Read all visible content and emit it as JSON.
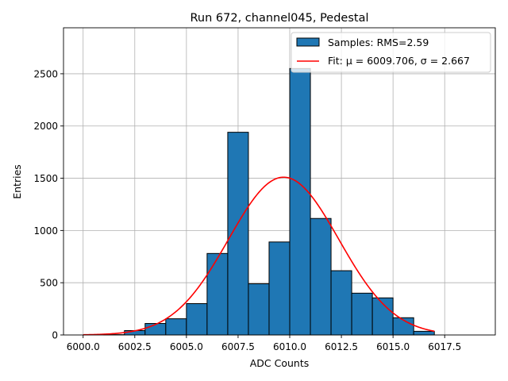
{
  "chart_data": {
    "type": "bar",
    "title": "Run 672, channel045, Pedestal",
    "xlabel": "ADC Counts",
    "ylabel": "Entries",
    "xlim": [
      5999.05,
      6019.95
    ],
    "ylim": [
      0,
      2940
    ],
    "xticks": [
      6000.0,
      6002.5,
      6005.0,
      6007.5,
      6010.0,
      6012.5,
      6015.0,
      6017.5
    ],
    "xtick_labels": [
      "6000.0",
      "6002.5",
      "6005.0",
      "6007.5",
      "6010.0",
      "6012.5",
      "6015.0",
      "6017.5"
    ],
    "yticks": [
      0,
      500,
      1000,
      1500,
      2000,
      2500
    ],
    "ytick_labels": [
      "0",
      "500",
      "1000",
      "1500",
      "2000",
      "2500"
    ],
    "grid": true,
    "histogram": {
      "name": "Samples: RMS=2.59",
      "color": "#1f77b4",
      "edgecolor": "#000000",
      "bin_edges": [
        6000,
        6001,
        6002,
        6003,
        6004,
        6005,
        6006,
        6007,
        6008,
        6009,
        6010,
        6011,
        6012,
        6013,
        6014,
        6015,
        6016,
        6017,
        6018,
        6019
      ],
      "values": [
        0,
        3,
        42,
        110,
        155,
        300,
        780,
        1940,
        490,
        890,
        2550,
        1115,
        615,
        400,
        355,
        165,
        35,
        0,
        0
      ]
    },
    "fit": {
      "name": "Fit: μ = 6009.706, σ = 2.667",
      "mu_label": "μ",
      "sigma_label": "σ",
      "color": "#ff0000",
      "mu": 6009.706,
      "sigma": 2.667,
      "amplitude": 1510,
      "x_range": [
        6000,
        6017
      ]
    },
    "legend": {
      "position": "top-right",
      "entries": [
        "Samples: RMS=2.59",
        "Fit: μ = 6009.706, σ = 2.667"
      ]
    }
  }
}
